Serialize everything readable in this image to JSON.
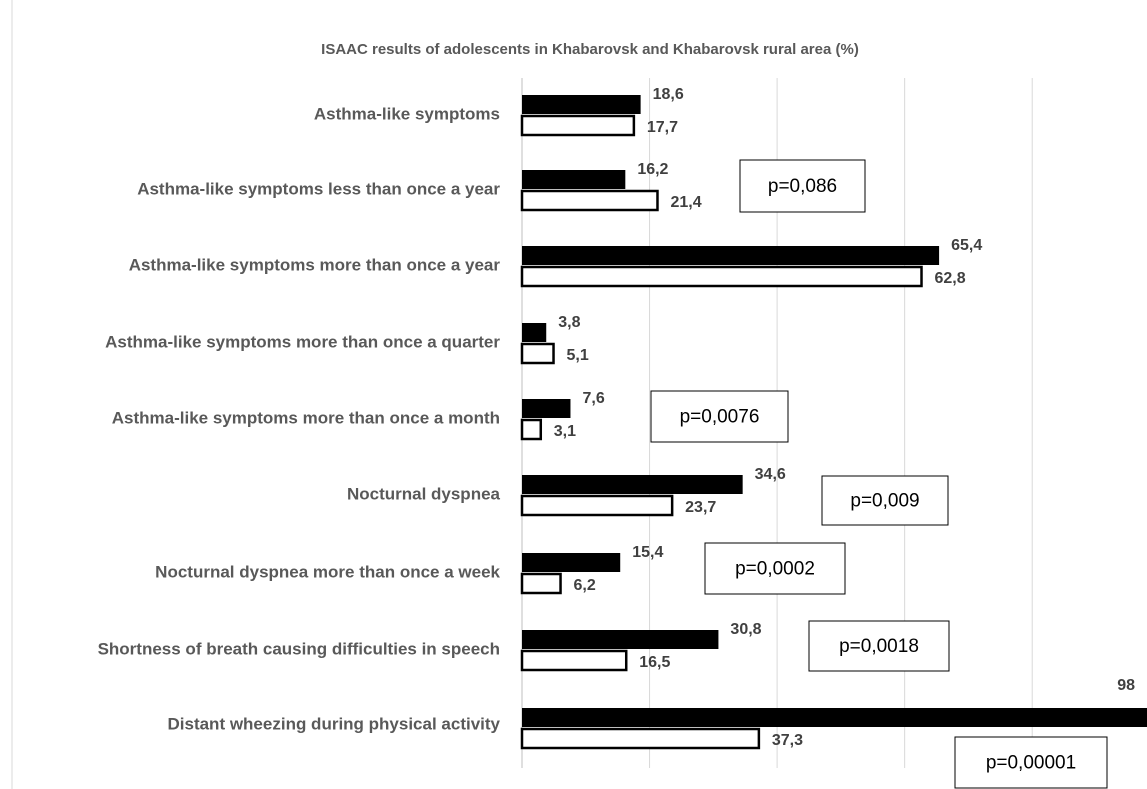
{
  "chart_data": {
    "type": "bar",
    "orientation": "horizontal",
    "title": "ISAAC results of adolescents in Khabarovsk and Khabarovsk rural area  (%)",
    "categories": [
      "Asthma-like symptoms",
      "Asthma-like symptoms less than once a year",
      "Asthma-like symptoms more than once a year",
      "Asthma-like symptoms more than once a quarter",
      "Asthma-like symptoms more than once a month",
      "Nocturnal dyspnea",
      "Nocturnal dyspnea more than once a week",
      "Shortness of breath causing difficulties in speech",
      "Distant wheezing during physical activity"
    ],
    "series": [
      {
        "color": "#000000",
        "values": [
          18.6,
          16.2,
          65.4,
          3.8,
          7.6,
          34.6,
          15.4,
          30.8,
          98
        ],
        "value_labels": [
          "18,6",
          "16,2",
          "65,4",
          "3,8",
          "7,6",
          "34,6",
          "15,4",
          "30,8",
          "98"
        ]
      },
      {
        "color": "#ffffff",
        "values": [
          17.7,
          21.4,
          62.8,
          5.1,
          3.1,
          23.7,
          6.2,
          16.5,
          37.3
        ],
        "value_labels": [
          "17,7",
          "21,4",
          "62,8",
          "5,1",
          "3,1",
          "23,7",
          "6,2",
          "16,5",
          "37,3"
        ]
      }
    ],
    "p_values": [
      null,
      "p=0,086",
      null,
      null,
      "p=0,0076",
      "p=0,009",
      "p=0,0002",
      "p=0,0018",
      "p=0,00001"
    ],
    "xlim": [
      0,
      98
    ],
    "xticks": [
      0,
      20,
      40,
      60,
      80
    ],
    "grid": true
  }
}
